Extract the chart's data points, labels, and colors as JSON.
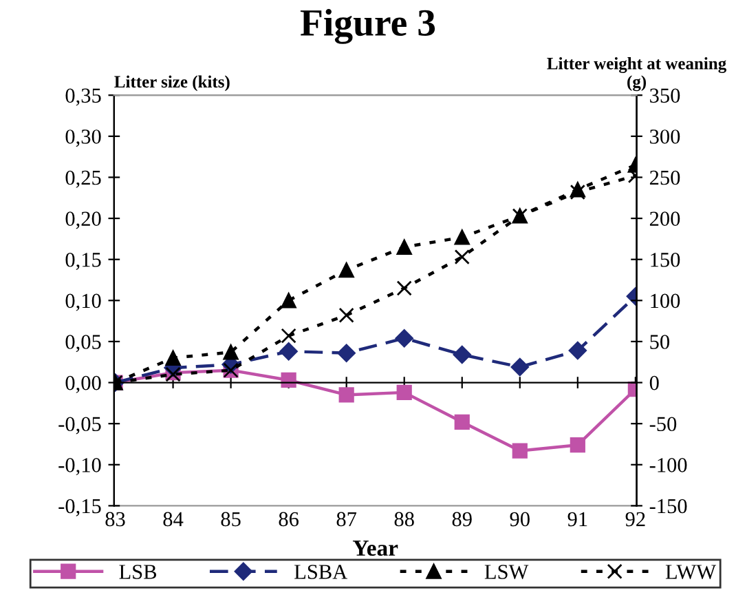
{
  "chart_data": {
    "type": "line",
    "title": "Figure 3",
    "xlabel": "Year",
    "ylabel": "Litter size (kits)",
    "y2label": "Litter weight at weaning (g)",
    "categories": [
      "83",
      "84",
      "85",
      "86",
      "87",
      "88",
      "89",
      "90",
      "91",
      "92"
    ],
    "series": [
      {
        "name": "LSB",
        "color": "#c052a8",
        "marker": "square",
        "line_style": "solid",
        "values": [
          0,
          0.012,
          0.015,
          0.003,
          -0.015,
          -0.012,
          -0.048,
          -0.083,
          -0.076,
          -0.008
        ]
      },
      {
        "name": "LSBA",
        "color": "#1f2a7a",
        "marker": "diamond",
        "line_style": "dashed",
        "values": [
          0,
          0.018,
          0.022,
          0.038,
          0.036,
          0.054,
          0.034,
          0.019,
          0.039,
          0.105
        ]
      },
      {
        "name": "LSW",
        "color": "#000000",
        "marker": "triangle",
        "line_style": "dotted",
        "axis": "y2",
        "values": [
          0,
          30,
          37,
          100,
          137,
          165,
          177,
          203,
          235,
          265
        ]
      },
      {
        "name": "LWW",
        "color": "#000000",
        "marker": "cross",
        "line_style": "dotted",
        "axis": "y2",
        "values": [
          0,
          10,
          15,
          57,
          82,
          115,
          153,
          203,
          232,
          252
        ]
      }
    ],
    "ylim": [
      -0.15,
      0.35
    ],
    "yticks": [
      {
        "value": -0.15,
        "label": "-0,15"
      },
      {
        "value": -0.1,
        "label": "-0,10"
      },
      {
        "value": -0.05,
        "label": "-0,05"
      },
      {
        "value": 0,
        "label": "0,00"
      },
      {
        "value": 0.05,
        "label": "0,05"
      },
      {
        "value": 0.1,
        "label": "0,10"
      },
      {
        "value": 0.15,
        "label": "0,15"
      },
      {
        "value": 0.2,
        "label": "0,20"
      },
      {
        "value": 0.25,
        "label": "0,25"
      },
      {
        "value": 0.3,
        "label": "0,30"
      },
      {
        "value": 0.35,
        "label": "0,35"
      }
    ],
    "y2lim": [
      -150,
      350
    ],
    "y2ticks": [
      {
        "value": -150,
        "label": "-150"
      },
      {
        "value": -100,
        "label": "-100"
      },
      {
        "value": -50,
        "label": "-50"
      },
      0,
      50,
      100,
      150,
      200,
      250,
      300,
      350
    ],
    "legend": "bottom"
  }
}
